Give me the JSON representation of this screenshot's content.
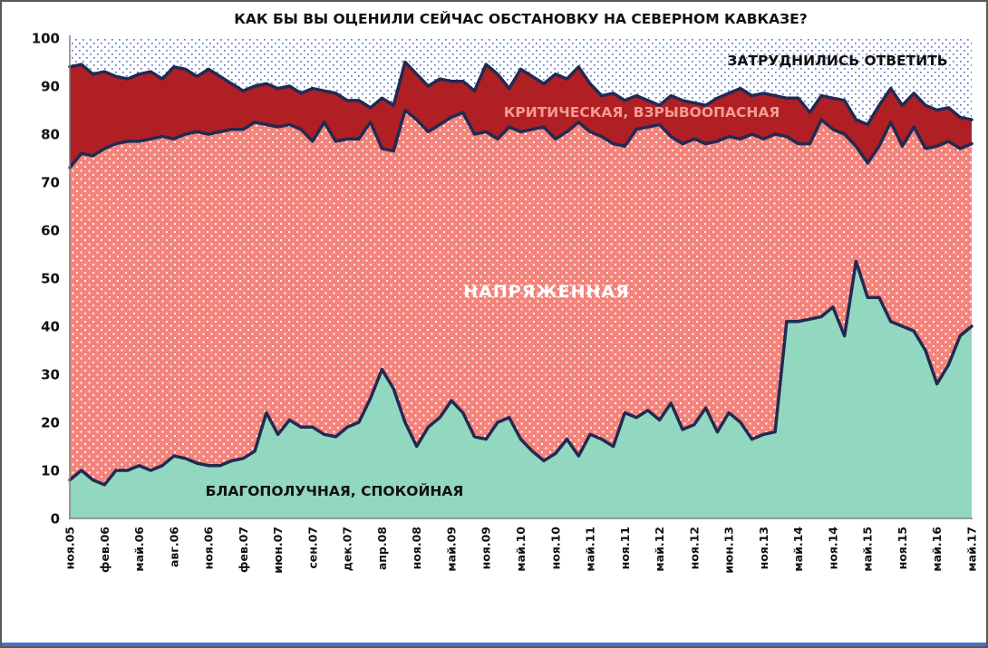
{
  "title": "КАК БЫ ВЫ ОЦЕНИЛИ СЕЙЧАС ОБСТАНОВКУ НА СЕВЕРНОМ КАВКАЗЕ?",
  "plot_labels": {
    "zatrudnilis": "ЗАТРУДНИЛИСЬ ОТВЕТИТЬ",
    "kriticheskaya": "КРИТИЧЕСКАЯ, ВЗРЫВООПАСНАЯ",
    "napryazhennaya": "НАПРЯЖЕННАЯ",
    "blagopoluchnaya": "БЛАГОПОЛУЧНАЯ, СПОКОЙНАЯ"
  },
  "colors": {
    "teal": "#92d7bf",
    "salmon": "#f4837b",
    "dark_red": "#b01f24",
    "navy_line": "#222a52",
    "axis": "#808080",
    "blue_dot": "#5b77cc",
    "white_dot": "#ffffff",
    "title_text": "#111111",
    "krit_label_text": "#f59a93",
    "bottom_strip": "#4472c4"
  },
  "chart_data": {
    "type": "area",
    "stacked": true,
    "ylim": [
      0,
      100
    ],
    "grid": false,
    "legend_position": "labels drawn inside areas",
    "y_ticks": [
      0,
      10,
      20,
      30,
      40,
      50,
      60,
      70,
      80,
      90,
      100
    ],
    "x_tick_labels": [
      "ноя.05",
      "фев.06",
      "май.06",
      "авг.06",
      "ноя.06",
      "фев.07",
      "июн.07",
      "сен.07",
      "дек.07",
      "апр.08",
      "ноя.08",
      "май.09",
      "ноя.09",
      "май.10",
      "ноя.10",
      "май.11",
      "ноя.11",
      "май.12",
      "ноя.12",
      "июн.13",
      "ноя.13",
      "май.14",
      "ноя.14",
      "май.15",
      "ноя.15",
      "май.16",
      "май.17"
    ],
    "label_every_n_points": 3,
    "points_count": 79,
    "series": [
      {
        "key": "blag",
        "name": "БЛАГОПОЛУЧНАЯ, СПОКОЙНАЯ",
        "color": "#92d7bf",
        "pattern": "solid",
        "values": [
          8,
          10,
          8,
          7,
          10,
          10,
          11,
          10,
          11,
          13,
          12.5,
          11.5,
          11,
          11,
          12,
          12.5,
          14,
          22,
          17.5,
          20.5,
          19,
          19,
          17.5,
          17,
          19,
          20,
          25,
          31,
          27,
          20,
          15,
          19,
          21,
          24.5,
          22,
          17,
          16.5,
          20,
          21,
          16.5,
          14,
          12,
          13.5,
          16.5,
          13,
          17.5,
          16.5,
          15,
          22,
          21,
          22.5,
          20.5,
          24,
          18.5,
          19.5,
          23,
          18,
          22,
          20,
          16.5,
          17.5,
          18,
          41,
          41,
          41.5,
          42,
          44,
          38,
          53.5,
          46,
          46,
          41,
          40,
          39,
          35,
          28,
          32,
          38,
          40
        ]
      },
      {
        "key": "napr",
        "name": "НАПРЯЖЕННАЯ",
        "color": "#f4837b",
        "pattern": "white-dots",
        "values": [
          65,
          66,
          67.5,
          70,
          68,
          68.5,
          67.5,
          69,
          68.5,
          66,
          67.5,
          69,
          69,
          69.5,
          69,
          68.5,
          68.5,
          60,
          64,
          61.5,
          62,
          59.5,
          65,
          61.5,
          60,
          59,
          57.5,
          46,
          49.5,
          65,
          68,
          61.5,
          61,
          59,
          62.5,
          63,
          64,
          59,
          60.5,
          64,
          67,
          69.5,
          65.5,
          64,
          69.5,
          63,
          63,
          63,
          55.5,
          60,
          59,
          61.5,
          55.5,
          59.5,
          59.5,
          55,
          60.5,
          57.5,
          59,
          63.5,
          61.5,
          62,
          38.5,
          37,
          36.5,
          41,
          37,
          42,
          24,
          28,
          31.5,
          41.5,
          37.5,
          42.5,
          42,
          49.5,
          46.5,
          39,
          38
        ]
      },
      {
        "key": "krit",
        "name": "КРИТИЧЕСКАЯ, ВЗРЫВООПАСНАЯ",
        "color": "#b01f24",
        "pattern": "solid",
        "values": [
          21,
          18.5,
          17,
          16,
          14,
          13,
          14,
          14,
          12,
          15,
          13.5,
          11.5,
          13.5,
          11.5,
          9.5,
          8,
          7.5,
          8.5,
          8,
          8,
          7.5,
          11,
          6.5,
          10,
          8,
          8,
          3,
          10.5,
          9.5,
          10,
          9.5,
          9.5,
          9.5,
          7.5,
          6.5,
          9,
          14,
          13.5,
          8,
          13,
          11,
          9,
          13.5,
          11,
          11.5,
          10,
          8.5,
          10.5,
          9.5,
          7,
          5.5,
          4,
          8.5,
          9,
          7.5,
          8,
          9,
          9,
          10.5,
          8,
          9.5,
          8,
          8,
          9.5,
          6.5,
          5,
          6.5,
          7,
          5.5,
          8,
          8.5,
          7,
          8.5,
          7,
          9,
          7.5,
          7,
          6.5,
          5
        ]
      },
      {
        "key": "zatr",
        "name": "ЗАТРУДНИЛИСЬ ОТВЕТИТЬ",
        "color": "#ffffff",
        "pattern": "blue-dots",
        "values": [
          6,
          5.5,
          7.5,
          7,
          8,
          8.5,
          7.5,
          7,
          8.5,
          6,
          6.5,
          8,
          6.5,
          8,
          9.5,
          11,
          10,
          9.5,
          10.5,
          10,
          11.5,
          10.5,
          11,
          11.5,
          13,
          13,
          14.5,
          12.5,
          14,
          5,
          7.5,
          10,
          8.5,
          9,
          9,
          11,
          5.5,
          7.5,
          10.5,
          6.5,
          8,
          9.5,
          7.5,
          8.5,
          6,
          9.5,
          12,
          11.5,
          13,
          12,
          13,
          14,
          12,
          13,
          13.5,
          14,
          12.5,
          11.5,
          10.5,
          12,
          11.5,
          12,
          12.5,
          12.5,
          15.5,
          12,
          12.5,
          13,
          17,
          18,
          14,
          10.5,
          14,
          11.5,
          14,
          15,
          14.5,
          16.5,
          17
        ]
      }
    ]
  }
}
